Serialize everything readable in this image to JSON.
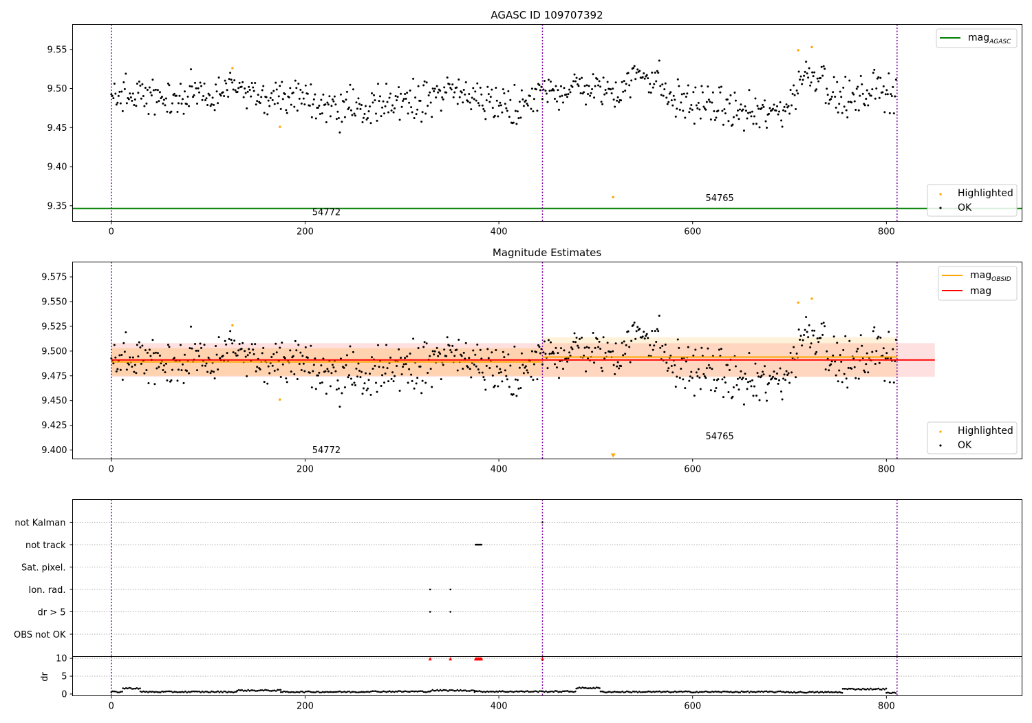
{
  "chart_data": [
    {
      "type": "scatter",
      "title": "AGASC ID 109707392",
      "xlim": [
        -40,
        940
      ],
      "ylim": [
        9.33,
        9.582
      ],
      "xticks": [
        0,
        200,
        400,
        600,
        800
      ],
      "yticks": [
        9.35,
        9.4,
        9.45,
        9.5,
        9.55
      ],
      "obs_boundaries": [
        0,
        445,
        811
      ],
      "obs_labels": [
        {
          "text": "54772",
          "x": 222,
          "y": 9.338
        },
        {
          "text": "54765",
          "x": 628,
          "y": 9.356
        }
      ],
      "lines": [
        {
          "name": "mag",
          "subscript": "AGASC",
          "value": 9.3465,
          "color": "#008000",
          "x_from": -40,
          "x_to": 940
        }
      ],
      "highlighted": [
        [
          125,
          9.526
        ],
        [
          174,
          9.451
        ],
        [
          518,
          9.361
        ],
        [
          709,
          9.549
        ],
        [
          723,
          9.553
        ]
      ],
      "legend": {
        "line_entries": [
          "mag_AGASC"
        ],
        "point_entries": [
          "Highlighted",
          "OK"
        ],
        "placement": "upper-right / lower-right"
      },
      "colors": {
        "highlighted": "#ffa500",
        "ok": "#000000",
        "boundary": "#7b00a0"
      }
    },
    {
      "type": "scatter",
      "title": "Magnitude Estimates",
      "xlim": [
        -40,
        940
      ],
      "ylim": [
        9.391,
        9.59
      ],
      "xticks": [
        0,
        200,
        400,
        600,
        800
      ],
      "yticks": [
        9.4,
        9.425,
        9.45,
        9.475,
        9.5,
        9.525,
        9.55,
        9.575
      ],
      "obs_boundaries": [
        0,
        445,
        811
      ],
      "obs_labels": [
        {
          "text": "54772",
          "x": 222,
          "y": 9.397
        },
        {
          "text": "54765",
          "x": 628,
          "y": 9.411
        }
      ],
      "lines": [
        {
          "name": "mag",
          "subscript": "OBSID",
          "value": 9.489,
          "color": "#ffa500",
          "x_from": 0,
          "x_to": 445
        },
        {
          "name": "mag",
          "subscript": "OBSID",
          "value": 9.494,
          "color": "#ffa500",
          "x_from": 445,
          "x_to": 811
        },
        {
          "name": "mag",
          "subscript": "",
          "value": 9.491,
          "color": "#ff0000",
          "x_from": 0,
          "x_to": 850
        }
      ],
      "bands": [
        {
          "low": 9.474,
          "high": 9.508,
          "x_from": 0,
          "x_to": 850,
          "color": "#ff0000",
          "opacity": 0.12
        },
        {
          "low": 9.475,
          "high": 9.503,
          "x_from": 0,
          "x_to": 445,
          "color": "#ffa500",
          "opacity": 0.22
        },
        {
          "low": 9.474,
          "high": 9.514,
          "x_from": 445,
          "x_to": 811,
          "color": "#ffa500",
          "opacity": 0.14
        }
      ],
      "highlighted": [
        [
          125,
          9.526
        ],
        [
          174,
          9.451
        ],
        [
          709,
          9.549
        ],
        [
          723,
          9.553
        ]
      ],
      "offscale_marker": [
        518,
        9.392
      ],
      "legend": {
        "line_entries": [
          "mag_OBSID",
          "mag"
        ],
        "point_entries": [
          "Highlighted",
          "OK"
        ],
        "placement": "upper-right / lower-right"
      },
      "colors": {
        "highlighted": "#ffa500",
        "ok": "#000000",
        "boundary": "#7b00a0"
      }
    },
    {
      "type": "scatter",
      "title": "",
      "xlim": [
        -40,
        940
      ],
      "xticks": [
        0,
        200,
        400,
        600,
        800
      ],
      "flag_categories": [
        "not Kalman",
        "not track",
        "Sat. pixel.",
        "Ion. rad.",
        "dr > 5",
        "OBS not OK"
      ],
      "flag_points": [
        {
          "flag": "not Kalman",
          "x": [
            445
          ]
        },
        {
          "flag": "not track",
          "x": [
            376,
            377,
            378,
            379,
            380,
            381,
            382
          ]
        },
        {
          "flag": "Ion. rad.",
          "x": [
            329,
            350
          ]
        },
        {
          "flag": "dr > 5",
          "x": [
            329,
            350
          ]
        }
      ]
    },
    {
      "type": "scatter",
      "title": "",
      "ylabel": "dr",
      "xlim": [
        -40,
        940
      ],
      "ylim": [
        -0.5,
        10.5
      ],
      "xticks": [
        0,
        200,
        400,
        600,
        800
      ],
      "yticks": [
        0,
        5,
        10
      ],
      "clipped_points": [
        329,
        350,
        376,
        377,
        378,
        379,
        380,
        381,
        382,
        445
      ],
      "segments": [
        {
          "from": 0,
          "to": 12,
          "level": 0.6
        },
        {
          "from": 12,
          "to": 30,
          "level": 1.6
        },
        {
          "from": 30,
          "to": 130,
          "level": 0.6
        },
        {
          "from": 130,
          "to": 175,
          "level": 1.0
        },
        {
          "from": 175,
          "to": 260,
          "level": 0.6
        },
        {
          "from": 260,
          "to": 330,
          "level": 0.7
        },
        {
          "from": 330,
          "to": 375,
          "level": 1.0
        },
        {
          "from": 375,
          "to": 480,
          "level": 0.7
        },
        {
          "from": 480,
          "to": 505,
          "level": 1.7
        },
        {
          "from": 505,
          "to": 700,
          "level": 0.6
        },
        {
          "from": 700,
          "to": 755,
          "level": 0.5
        },
        {
          "from": 755,
          "to": 800,
          "level": 1.4
        },
        {
          "from": 800,
          "to": 811,
          "level": 0.3
        }
      ],
      "colors": {
        "clipped": "#ff0000",
        "ok": "#000000"
      }
    }
  ]
}
